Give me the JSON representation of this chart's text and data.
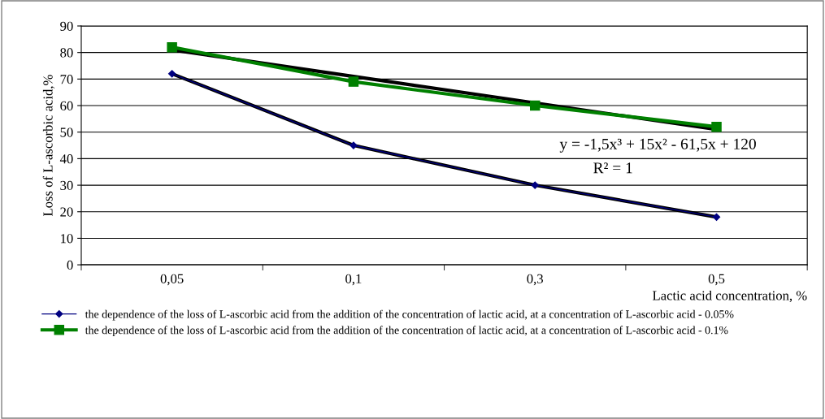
{
  "chart_data": {
    "type": "line",
    "xlabel": "Lactic acid concentration, %",
    "ylabel": "Loss of L-ascorbic acid,%",
    "categories": [
      "0,05",
      "0,1",
      "0,3",
      "0,5"
    ],
    "series": [
      {
        "name": "the dependence of the loss of L-ascorbic acid from the addition of the concentration of lactic acid, at a concentration of L-ascorbic acid - 0.05%",
        "color": "#000080",
        "values": [
          72,
          45,
          30,
          18
        ],
        "marker": "diamond"
      },
      {
        "name": "the dependence of the loss of L-ascorbic acid from the addition of the concentration of lactic acid, at a concentration of L-ascorbic acid - 0.1%",
        "color": "#008000",
        "values": [
          82,
          69,
          60,
          52
        ],
        "marker": "square"
      },
      {
        "type": "line",
        "color": "#000000",
        "values": [
          72,
          45,
          30,
          18
        ]
      },
      {
        "type": "line",
        "color": "#000000",
        "values": [
          81,
          71,
          61,
          51
        ]
      }
    ],
    "ylim": [
      0,
      90
    ],
    "yticks": [
      0,
      10,
      20,
      30,
      40,
      50,
      60,
      70,
      80,
      90
    ],
    "grid": "y",
    "legend": "bottom",
    "annotations": [
      "y = -1,5x³ + 15x² - 61,5x + 120",
      "R² = 1"
    ]
  }
}
